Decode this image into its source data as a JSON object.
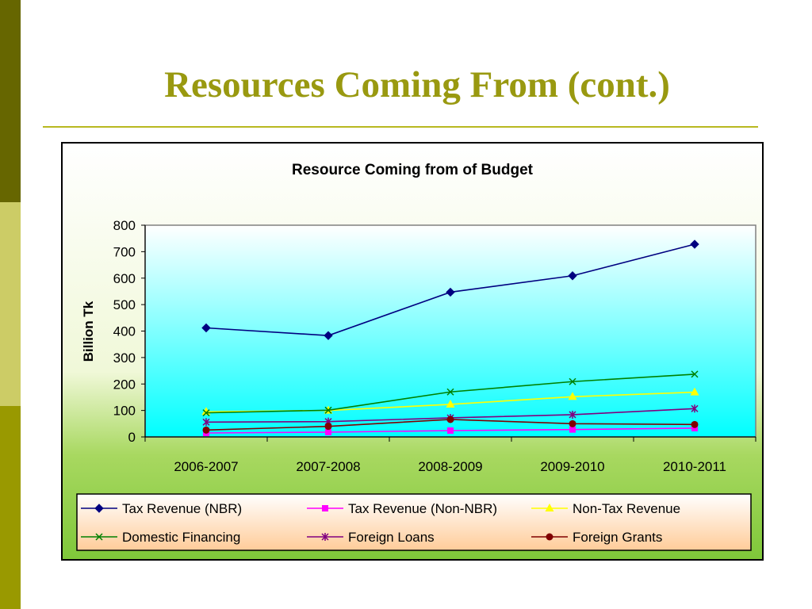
{
  "slide": {
    "title": "Resources Coming From (cont.)"
  },
  "colors": {
    "sidebar": [
      "#666600",
      "#cccc66",
      "#999900"
    ],
    "title": "#999910"
  },
  "chart_data": {
    "type": "line",
    "title": "Resource Coming from of Budget",
    "xlabel": "",
    "ylabel": "Billion Tk",
    "ylim": [
      0,
      800
    ],
    "yticks": [
      0,
      100,
      200,
      300,
      400,
      500,
      600,
      700,
      800
    ],
    "categories": [
      "2006-2007",
      "2007-2008",
      "2008-2009",
      "2009-2010",
      "2010-2011"
    ],
    "grid": false,
    "legend_position": "bottom",
    "series": [
      {
        "name": "Tax Revenue (NBR)",
        "values": [
          412,
          383,
          547,
          609,
          728
        ],
        "color": "#000080",
        "marker": "diamond"
      },
      {
        "name": "Tax Revenue (Non-NBR)",
        "values": [
          15,
          18,
          24,
          28,
          33
        ],
        "color": "#ff00ff",
        "marker": "square"
      },
      {
        "name": "Non-Tax Revenue",
        "values": [
          95,
          100,
          123,
          152,
          169
        ],
        "color": "#ffff00",
        "marker": "triangle"
      },
      {
        "name": "Domestic Financing",
        "values": [
          91,
          101,
          170,
          209,
          237
        ],
        "color": "#008000",
        "marker": "x"
      },
      {
        "name": "Foreign Loans",
        "values": [
          56,
          58,
          72,
          84,
          107
        ],
        "color": "#800080",
        "marker": "star"
      },
      {
        "name": "Foreign Grants",
        "values": [
          26,
          40,
          66,
          50,
          47
        ],
        "color": "#800000",
        "marker": "circle"
      }
    ]
  }
}
